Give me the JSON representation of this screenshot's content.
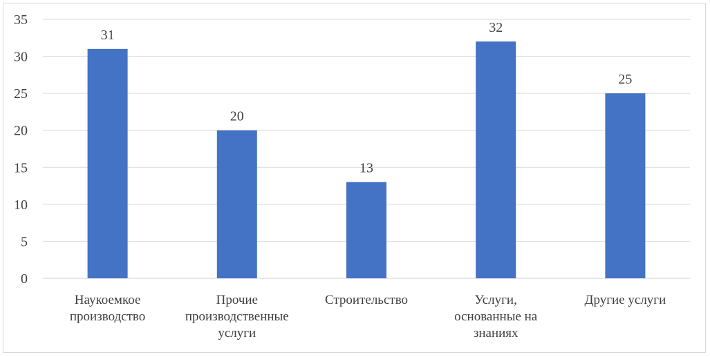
{
  "chart_data": {
    "type": "bar",
    "categories": [
      [
        "Наукоемкое",
        "производство"
      ],
      [
        "Прочие",
        "производственные",
        "услуги"
      ],
      [
        "Строительство"
      ],
      [
        "Услуги,",
        "основанные на",
        "знаниях"
      ],
      [
        "Другие услуги"
      ]
    ],
    "values": [
      31,
      20,
      13,
      32,
      25
    ],
    "data_labels": [
      "31",
      "20",
      "13",
      "32",
      "25"
    ],
    "y_ticks": [
      "0",
      "5",
      "10",
      "15",
      "20",
      "25",
      "30",
      "35"
    ],
    "ylim": [
      0,
      35
    ],
    "grid": true,
    "legend": "none",
    "bar_color": "#4472c4",
    "grid_color": "#d9d9d9"
  }
}
